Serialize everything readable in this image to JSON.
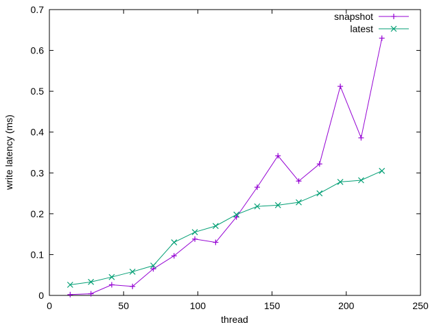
{
  "chart_data": {
    "type": "line",
    "title": "",
    "xlabel": "thread",
    "ylabel": "write latency (ms)",
    "xlim": [
      0,
      250
    ],
    "ylim": [
      0,
      0.7
    ],
    "xticks": [
      "0",
      "50",
      "100",
      "150",
      "200",
      "250"
    ],
    "yticks": [
      "0",
      "0.1",
      "0.2",
      "0.3",
      "0.4",
      "0.5",
      "0.6",
      "0.7"
    ],
    "grid": false,
    "legend_position": "top-right",
    "x": [
      14,
      28,
      42,
      56,
      70,
      84,
      98,
      112,
      126,
      140,
      154,
      168,
      182,
      196,
      210,
      224
    ],
    "series": [
      {
        "name": "snapshot",
        "color": "#9400d3",
        "marker": "plus",
        "values": [
          0.002,
          0.004,
          0.026,
          0.022,
          0.065,
          0.097,
          0.138,
          0.13,
          0.192,
          0.265,
          0.342,
          0.28,
          0.322,
          0.512,
          0.386,
          0.63
        ]
      },
      {
        "name": "latest",
        "color": "#009e73",
        "marker": "cross",
        "values": [
          0.026,
          0.033,
          0.045,
          0.058,
          0.073,
          0.13,
          0.155,
          0.17,
          0.198,
          0.218,
          0.221,
          0.228,
          0.25,
          0.278,
          0.282,
          0.305
        ]
      }
    ]
  }
}
